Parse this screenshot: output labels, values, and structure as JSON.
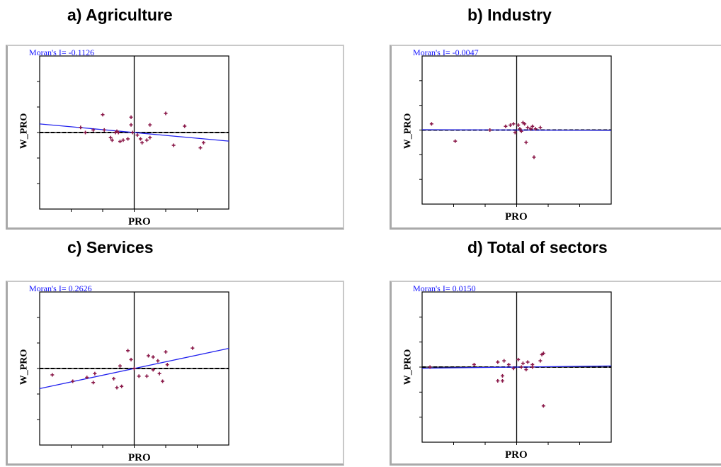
{
  "chart_data": [
    {
      "type": "scatter",
      "title": "a) Agriculture",
      "annotation": "Moran's I= -0.1126",
      "xlabel": "PRO",
      "ylabel": "W_PRO",
      "xlim": [
        -3,
        3
      ],
      "ylim": [
        -3,
        3
      ],
      "grid": false,
      "regression_slope": -0.1126,
      "colors": {
        "points": "#8b1a4a",
        "regression": "#2222ee",
        "axes": "#000000"
      },
      "points": [
        {
          "x": -1.0,
          "y": 0.7
        },
        {
          "x": -1.7,
          "y": 0.2
        },
        {
          "x": -1.55,
          "y": 0.0
        },
        {
          "x": -1.3,
          "y": 0.1
        },
        {
          "x": -0.95,
          "y": 0.1
        },
        {
          "x": -0.55,
          "y": 0.05
        },
        {
          "x": -0.5,
          "y": 0.0
        },
        {
          "x": -0.75,
          "y": -0.2
        },
        {
          "x": -0.7,
          "y": -0.3
        },
        {
          "x": -0.45,
          "y": -0.35
        },
        {
          "x": -0.35,
          "y": -0.3
        },
        {
          "x": -0.2,
          "y": -0.25
        },
        {
          "x": -0.1,
          "y": 0.6
        },
        {
          "x": -0.1,
          "y": 0.3
        },
        {
          "x": -0.05,
          "y": 0.0
        },
        {
          "x": 0.1,
          "y": -0.1
        },
        {
          "x": 0.2,
          "y": -0.25
        },
        {
          "x": 0.25,
          "y": -0.4
        },
        {
          "x": 0.4,
          "y": -0.3
        },
        {
          "x": 0.5,
          "y": -0.2
        },
        {
          "x": 0.5,
          "y": 0.3
        },
        {
          "x": 1.0,
          "y": 0.75
        },
        {
          "x": 1.25,
          "y": -0.5
        },
        {
          "x": 1.6,
          "y": 0.25
        },
        {
          "x": 2.1,
          "y": -0.6
        },
        {
          "x": 2.2,
          "y": -0.4
        },
        {
          "x": -0.6,
          "y": 0.0
        }
      ]
    },
    {
      "type": "scatter",
      "title": "b) Industry",
      "annotation": "Moran's I= -0.0047",
      "xlabel": "PRO",
      "ylabel": "W_PRO",
      "xlim": [
        -3,
        3
      ],
      "ylim": [
        -3,
        3
      ],
      "grid": false,
      "regression_slope": -0.0047,
      "colors": {
        "points": "#8b1a4a",
        "regression": "#2222ee",
        "axes": "#000000"
      },
      "points": [
        {
          "x": -2.7,
          "y": 0.25
        },
        {
          "x": -1.95,
          "y": -0.45
        },
        {
          "x": -0.85,
          "y": 0.0
        },
        {
          "x": -0.35,
          "y": 0.15
        },
        {
          "x": -0.2,
          "y": 0.2
        },
        {
          "x": -0.1,
          "y": 0.25
        },
        {
          "x": 0.05,
          "y": 0.2
        },
        {
          "x": 0.1,
          "y": 0.05
        },
        {
          "x": -0.05,
          "y": -0.1
        },
        {
          "x": 0.2,
          "y": 0.3
        },
        {
          "x": 0.25,
          "y": 0.25
        },
        {
          "x": 0.35,
          "y": 0.1
        },
        {
          "x": 0.45,
          "y": 0.05
        },
        {
          "x": 0.5,
          "y": 0.15
        },
        {
          "x": 0.6,
          "y": 0.05
        },
        {
          "x": 0.75,
          "y": 0.1
        },
        {
          "x": 0.3,
          "y": -0.5
        },
        {
          "x": 0.55,
          "y": -1.1
        },
        {
          "x": 0.15,
          "y": -0.05
        }
      ]
    },
    {
      "type": "scatter",
      "title": "c) Services",
      "annotation": "Moran's I= 0.2626",
      "xlabel": "PRO",
      "ylabel": "W_PRO",
      "xlim": [
        -3,
        3
      ],
      "ylim": [
        -3,
        3
      ],
      "grid": false,
      "regression_slope": 0.2626,
      "colors": {
        "points": "#8b1a4a",
        "regression": "#2222ee",
        "axes": "#000000"
      },
      "points": [
        {
          "x": -2.6,
          "y": -0.25
        },
        {
          "x": -1.95,
          "y": -0.5
        },
        {
          "x": -1.5,
          "y": -0.35
        },
        {
          "x": -1.3,
          "y": -0.55
        },
        {
          "x": -1.25,
          "y": -0.2
        },
        {
          "x": -0.65,
          "y": -0.4
        },
        {
          "x": -0.55,
          "y": -0.75
        },
        {
          "x": -0.4,
          "y": -0.7
        },
        {
          "x": -0.45,
          "y": 0.1
        },
        {
          "x": -0.2,
          "y": 0.7
        },
        {
          "x": -0.1,
          "y": 0.35
        },
        {
          "x": 0.0,
          "y": 0.0
        },
        {
          "x": 0.15,
          "y": -0.3
        },
        {
          "x": 0.4,
          "y": -0.3
        },
        {
          "x": 0.45,
          "y": 0.5
        },
        {
          "x": 0.6,
          "y": 0.45
        },
        {
          "x": 0.75,
          "y": 0.3
        },
        {
          "x": 0.6,
          "y": -0.05
        },
        {
          "x": 0.8,
          "y": -0.2
        },
        {
          "x": 0.9,
          "y": -0.5
        },
        {
          "x": 1.05,
          "y": 0.15
        },
        {
          "x": 1.0,
          "y": 0.65
        },
        {
          "x": 1.85,
          "y": 0.8
        }
      ]
    },
    {
      "type": "scatter",
      "title": "d) Total of sectors",
      "annotation": "Moran's I= 0.0150",
      "xlabel": "PRO",
      "ylabel": "W_PRO",
      "xlim": [
        -3,
        3
      ],
      "ylim": [
        -3,
        3
      ],
      "grid": false,
      "regression_slope": 0.015,
      "colors": {
        "points": "#8b1a4a",
        "regression": "#2222ee",
        "axes": "#000000"
      },
      "points": [
        {
          "x": -2.75,
          "y": 0.0
        },
        {
          "x": -1.35,
          "y": 0.1
        },
        {
          "x": -0.6,
          "y": 0.2
        },
        {
          "x": -0.4,
          "y": 0.25
        },
        {
          "x": -0.25,
          "y": 0.1
        },
        {
          "x": 0.05,
          "y": 0.3
        },
        {
          "x": 0.2,
          "y": 0.15
        },
        {
          "x": 0.35,
          "y": 0.2
        },
        {
          "x": 0.5,
          "y": 0.1
        },
        {
          "x": 0.75,
          "y": 0.25
        },
        {
          "x": 0.8,
          "y": 0.5
        },
        {
          "x": 0.85,
          "y": 0.55
        },
        {
          "x": 0.5,
          "y": 0.0
        },
        {
          "x": 0.3,
          "y": -0.1
        },
        {
          "x": -0.1,
          "y": -0.05
        },
        {
          "x": -0.45,
          "y": -0.35
        },
        {
          "x": -0.6,
          "y": -0.55
        },
        {
          "x": -0.45,
          "y": -0.55
        },
        {
          "x": 0.85,
          "y": -1.55
        },
        {
          "x": 0.15,
          "y": 0.0
        }
      ]
    }
  ]
}
